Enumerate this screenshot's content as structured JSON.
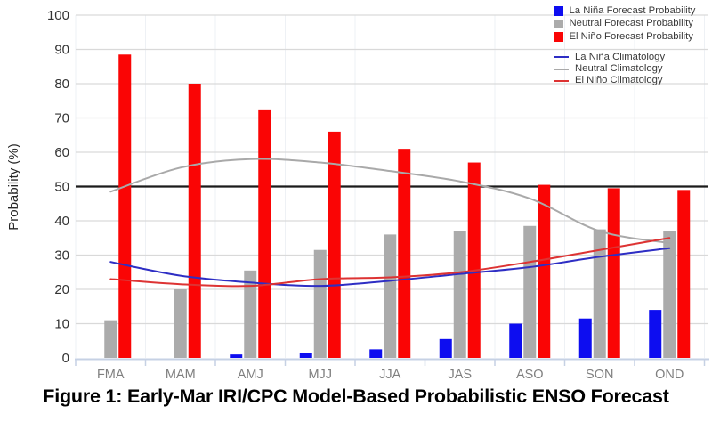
{
  "figure": {
    "caption": "Figure 1: Early-Mar IRI/CPC Model-Based Probabilistic ENSO Forecast"
  },
  "y_axis": {
    "label": "Probability (%)",
    "tick_values": [
      0,
      10,
      20,
      30,
      40,
      50,
      60,
      70,
      80,
      90,
      100
    ]
  },
  "x_axis": {
    "categories": [
      "FMA",
      "MAM",
      "AMJ",
      "MJJ",
      "JJA",
      "JAS",
      "ASO",
      "SON",
      "OND"
    ]
  },
  "legend": {
    "items": [
      {
        "label": "La Niña Forecast Probability",
        "swatch": "square"
      },
      {
        "label": "Neutral Forecast Probability",
        "swatch": "square"
      },
      {
        "label": "El Niño Forecast Probability",
        "swatch": "square"
      },
      {
        "label": "La Niña Climatology",
        "swatch": "line"
      },
      {
        "label": "Neutral Climatology",
        "swatch": "line"
      },
      {
        "label": "El Niño Climatology",
        "swatch": "line"
      }
    ]
  },
  "chart_data": {
    "type": "bar",
    "title": "Figure 1: Early-Mar IRI/CPC Model-Based Probabilistic ENSO Forecast",
    "xlabel": "",
    "ylabel": "Probability (%)",
    "ylim": [
      0,
      100
    ],
    "grid": true,
    "legend_position": "top-right",
    "reference_line": {
      "value": 50,
      "color": "#1b1b1b"
    },
    "categories": [
      "FMA",
      "MAM",
      "AMJ",
      "MJJ",
      "JJA",
      "JAS",
      "ASO",
      "SON",
      "OND"
    ],
    "series": [
      {
        "name": "La Niña Forecast Probability",
        "type": "bar",
        "color": "#0d0df0",
        "values": [
          0,
          0,
          1,
          1.5,
          2.5,
          5.5,
          10,
          11.5,
          14
        ]
      },
      {
        "name": "Neutral Forecast Probability",
        "type": "bar",
        "color": "#ababab",
        "values": [
          11,
          20,
          25.5,
          31.5,
          36,
          37,
          38.5,
          37.5,
          37
        ]
      },
      {
        "name": "El Niño Forecast Probability",
        "type": "bar",
        "color": "#fa0505",
        "values": [
          88.5,
          80,
          72.5,
          66,
          61,
          57,
          50.5,
          49.5,
          49
        ]
      },
      {
        "name": "La Niña Climatology",
        "type": "line",
        "color": "#2e2ec4",
        "values": [
          28,
          24,
          22,
          21,
          22.5,
          24.5,
          26.5,
          29.5,
          32
        ]
      },
      {
        "name": "Neutral Climatology",
        "type": "line",
        "color": "#a9a9a9",
        "values": [
          48.5,
          55.5,
          58,
          57,
          54.5,
          51.5,
          46.5,
          37,
          33.5
        ]
      },
      {
        "name": "El Niño Climatology",
        "type": "line",
        "color": "#dd3333",
        "values": [
          23,
          21.5,
          21,
          23,
          23.5,
          25,
          28,
          31.5,
          35
        ]
      }
    ]
  }
}
